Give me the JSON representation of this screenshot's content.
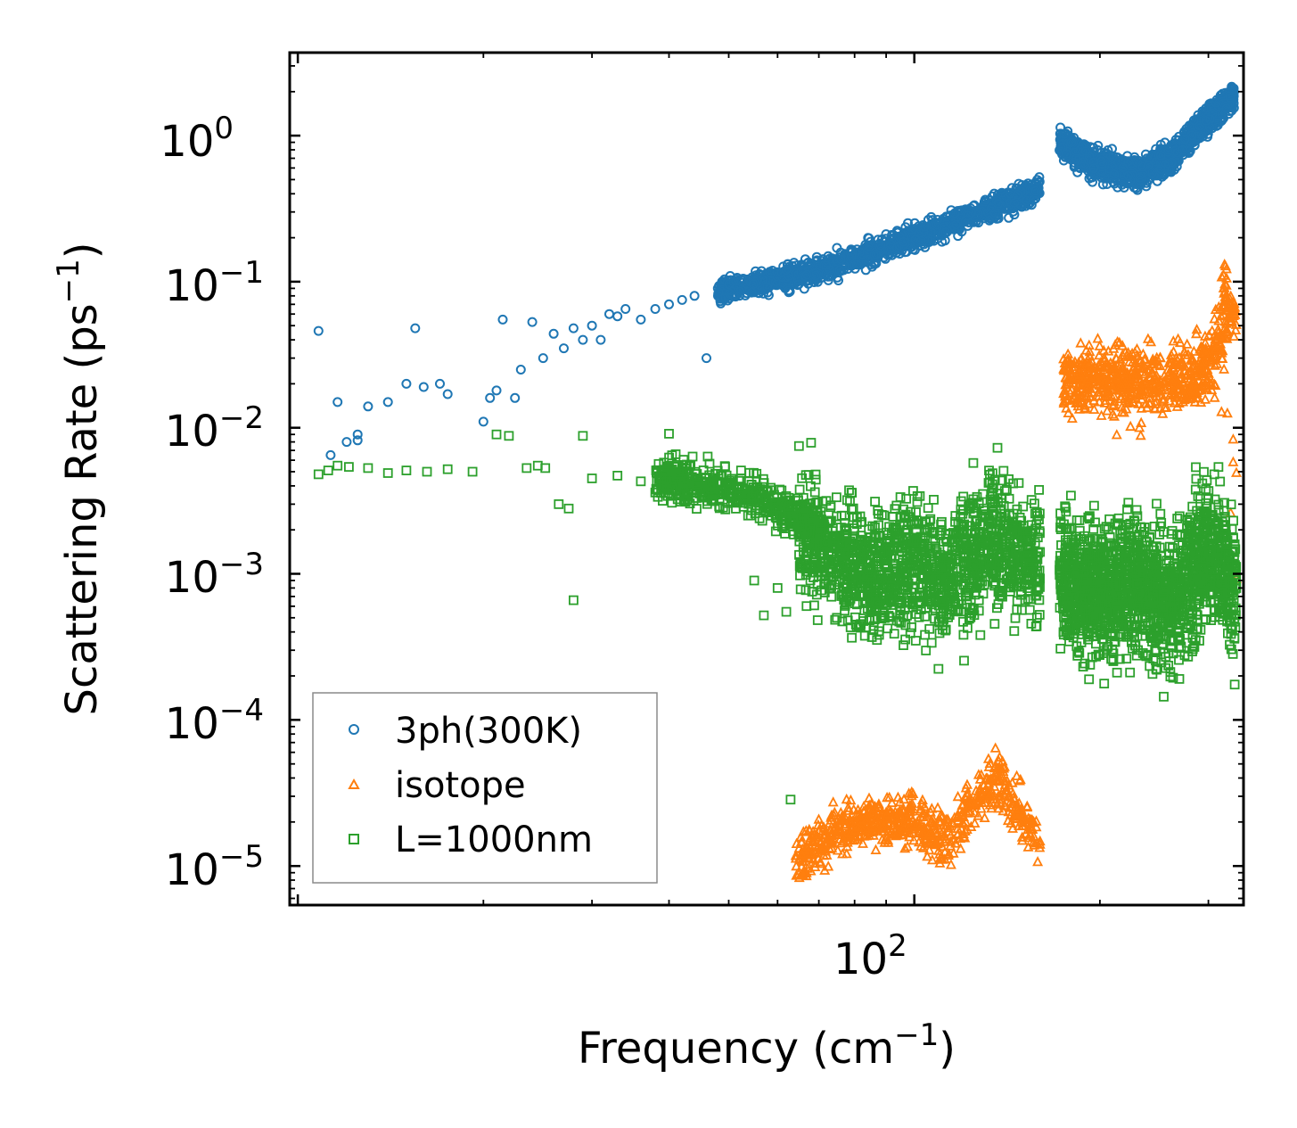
{
  "chart_data": {
    "type": "scatter",
    "xscale": "log",
    "yscale": "log",
    "xlabel": "Frequency (cm",
    "xlabel_exponent": "−1",
    "xlabel_close": ")",
    "ylabel": "Scattering Rate (ps",
    "ylabel_exponent": "−1",
    "ylabel_close": ")",
    "xlim": [
      9.7,
      342
    ],
    "ylim": [
      5.4e-06,
      3.7
    ],
    "x_tick_labels": [
      {
        "value": 100,
        "base": "10",
        "exp": "2"
      }
    ],
    "y_tick_labels": [
      {
        "value": 1,
        "base": "10",
        "exp": "0"
      },
      {
        "value": 0.1,
        "base": "10",
        "exp": "−1"
      },
      {
        "value": 0.01,
        "base": "10",
        "exp": "−2"
      },
      {
        "value": 0.001,
        "base": "10",
        "exp": "−3"
      },
      {
        "value": 0.0001,
        "base": "10",
        "exp": "−4"
      },
      {
        "value": 1e-05,
        "base": "10",
        "exp": "−5"
      }
    ],
    "legend_position": "lower-left",
    "series": [
      {
        "name": "3ph(300K)",
        "marker": "circle",
        "color": "#1f77b4",
        "points": [
          [
            10.8,
            0.046
          ],
          [
            11.3,
            0.0065
          ],
          [
            11.6,
            0.015
          ],
          [
            12.0,
            0.008
          ],
          [
            12.5,
            0.0082
          ],
          [
            12.5,
            0.009
          ],
          [
            13.0,
            0.014
          ],
          [
            14.0,
            0.015
          ],
          [
            15.0,
            0.02
          ],
          [
            15.5,
            0.048
          ],
          [
            16.0,
            0.019
          ],
          [
            17.0,
            0.02
          ],
          [
            17.5,
            0.017
          ],
          [
            20.0,
            0.011
          ],
          [
            20.5,
            0.016
          ],
          [
            21.0,
            0.018
          ],
          [
            21.5,
            0.055
          ],
          [
            22.5,
            0.016
          ],
          [
            23.0,
            0.025
          ],
          [
            24.0,
            0.053
          ],
          [
            25.0,
            0.03
          ],
          [
            26.0,
            0.044
          ],
          [
            27.0,
            0.035
          ],
          [
            28.0,
            0.048
          ],
          [
            29.0,
            0.04
          ],
          [
            30.0,
            0.05
          ],
          [
            31.0,
            0.04
          ],
          [
            32.0,
            0.06
          ],
          [
            33.0,
            0.058
          ],
          [
            34.0,
            0.065
          ],
          [
            36.0,
            0.055
          ],
          [
            38.0,
            0.065
          ],
          [
            40.0,
            0.07
          ],
          [
            42.0,
            0.075
          ],
          [
            44.0,
            0.08
          ],
          [
            46.0,
            0.03
          ],
          [
            48.0,
            0.09
          ]
        ]
      },
      {
        "name": "isotope",
        "marker": "triangle",
        "color": "#ff7f0e",
        "points": [
          [
            213,
            0.0089
          ],
          [
            233,
            0.0088
          ],
          [
            307,
            0.016
          ],
          [
            315,
            0.0128
          ],
          [
            318,
            0.025
          ],
          [
            322,
            0.0125
          ],
          [
            329,
            0.0083
          ],
          [
            333,
            0.0049
          ],
          [
            333,
            0.00092
          ],
          [
            329,
            0.0058
          ],
          [
            326,
            0.0026
          ]
        ]
      },
      {
        "name": "L=1000nm",
        "marker": "square",
        "color": "#2ca02c",
        "points": [
          [
            10.8,
            0.0048
          ],
          [
            11.2,
            0.0051
          ],
          [
            11.6,
            0.0055
          ],
          [
            12.1,
            0.0054
          ],
          [
            13.0,
            0.0053
          ],
          [
            14.0,
            0.0049
          ],
          [
            15.0,
            0.0051
          ],
          [
            16.2,
            0.005
          ],
          [
            17.5,
            0.0052
          ],
          [
            19.2,
            0.005
          ],
          [
            21.0,
            0.009
          ],
          [
            22.0,
            0.0088
          ],
          [
            23.5,
            0.0053
          ],
          [
            24.5,
            0.0055
          ],
          [
            25.2,
            0.0053
          ],
          [
            26.5,
            0.003
          ],
          [
            27.5,
            0.0028
          ],
          [
            28.0,
            0.00066
          ],
          [
            29.0,
            0.0088
          ],
          [
            30.0,
            0.0045
          ],
          [
            33.0,
            0.0047
          ],
          [
            36.0,
            0.0043
          ],
          [
            40.0,
            0.0091
          ],
          [
            43.0,
            0.0043
          ],
          [
            46.0,
            0.004
          ],
          [
            48.0,
            0.0037
          ],
          [
            52.0,
            0.0038
          ],
          [
            55.0,
            0.0009
          ],
          [
            57.0,
            0.00052
          ],
          [
            60.0,
            0.0008
          ],
          [
            62.0,
            0.00055
          ],
          [
            63.0,
            2.85e-05
          ],
          [
            65.0,
            0.0075
          ],
          [
            68.0,
            0.0079
          ]
        ]
      }
    ]
  }
}
